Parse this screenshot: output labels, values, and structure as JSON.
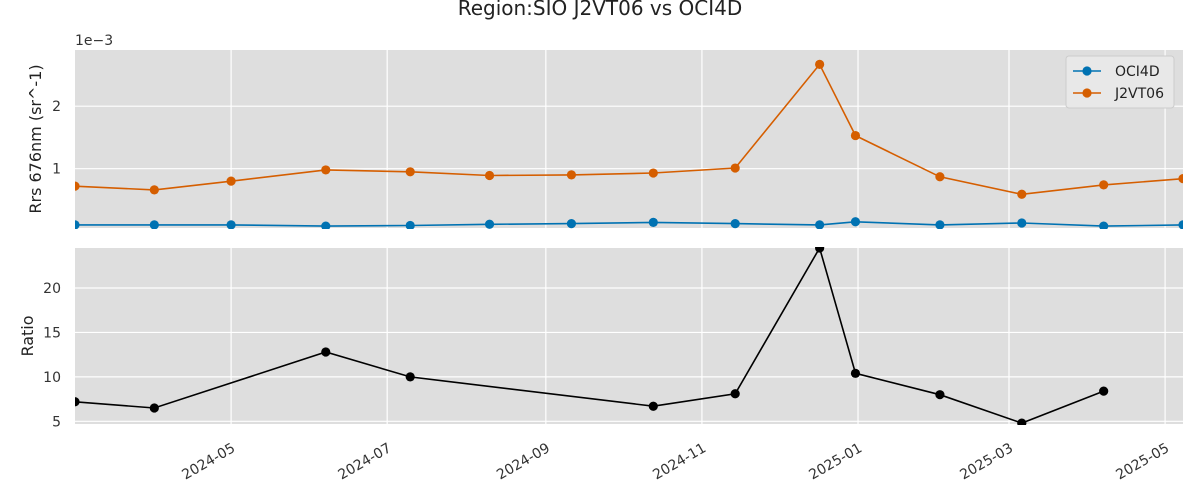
{
  "chart_data": {
    "type": "line",
    "title": "Region:SIO J2VT06 vs OCI4D",
    "x_range": [
      "2024-03-01",
      "2025-05-08"
    ],
    "x_ticks": [
      "2024-05",
      "2024-07",
      "2024-09",
      "2024-11",
      "2025-01",
      "2025-03",
      "2025-05"
    ],
    "grid": true,
    "panels": [
      {
        "type": "line",
        "ylabel": "Rrs 676nm (sr^-1)",
        "offset_text": "1e−3",
        "ylim": [
          5e-05,
          0.0029
        ],
        "y_ticks": [
          0.001,
          0.002
        ],
        "y_tick_labels": [
          "1",
          "2"
        ],
        "legend_position": "top-right",
        "series": [
          {
            "name": "OCI4D",
            "color": "#0072B2",
            "points": [
              {
                "x": "2024-03-01",
                "y": 0.0001
              },
              {
                "x": "2024-04-01",
                "y": 0.0001
              },
              {
                "x": "2024-05-01",
                "y": 0.0001
              },
              {
                "x": "2024-06-07",
                "y": 8e-05
              },
              {
                "x": "2024-07-10",
                "y": 9e-05
              },
              {
                "x": "2024-08-10",
                "y": 0.00011
              },
              {
                "x": "2024-09-11",
                "y": 0.00012
              },
              {
                "x": "2024-10-13",
                "y": 0.00014
              },
              {
                "x": "2024-11-14",
                "y": 0.00012
              },
              {
                "x": "2024-12-17",
                "y": 0.0001
              },
              {
                "x": "2024-12-31",
                "y": 0.00015
              },
              {
                "x": "2025-02-02",
                "y": 0.0001
              },
              {
                "x": "2025-03-06",
                "y": 0.00013
              },
              {
                "x": "2025-04-07",
                "y": 8e-05
              },
              {
                "x": "2025-05-08",
                "y": 0.0001
              }
            ]
          },
          {
            "name": "J2VT06",
            "color": "#D55E00",
            "points": [
              {
                "x": "2024-03-01",
                "y": 0.00072
              },
              {
                "x": "2024-04-01",
                "y": 0.00066
              },
              {
                "x": "2024-05-01",
                "y": 0.0008
              },
              {
                "x": "2024-06-07",
                "y": 0.00098
              },
              {
                "x": "2024-07-10",
                "y": 0.00095
              },
              {
                "x": "2024-08-10",
                "y": 0.00089
              },
              {
                "x": "2024-09-11",
                "y": 0.0009
              },
              {
                "x": "2024-10-13",
                "y": 0.00093
              },
              {
                "x": "2024-11-14",
                "y": 0.00101
              },
              {
                "x": "2024-12-17",
                "y": 0.00267
              },
              {
                "x": "2024-12-31",
                "y": 0.00153
              },
              {
                "x": "2025-02-02",
                "y": 0.00087
              },
              {
                "x": "2025-03-06",
                "y": 0.00059
              },
              {
                "x": "2025-04-07",
                "y": 0.00074
              },
              {
                "x": "2025-05-08",
                "y": 0.00084
              }
            ]
          }
        ]
      },
      {
        "type": "line",
        "ylabel": "Ratio",
        "ylim": [
          4.7,
          24.5
        ],
        "y_ticks": [
          5,
          10,
          15,
          20
        ],
        "y_tick_labels": [
          "5",
          "10",
          "15",
          "20"
        ],
        "series": [
          {
            "name": "",
            "color": "#000000",
            "points": [
              {
                "x": "2024-03-01",
                "y": 7.2
              },
              {
                "x": "2024-04-01",
                "y": 6.5
              },
              {
                "x": "2024-06-07",
                "y": 12.8
              },
              {
                "x": "2024-07-10",
                "y": 10.0
              },
              {
                "x": "2024-10-13",
                "y": 6.7
              },
              {
                "x": "2024-11-14",
                "y": 8.1
              },
              {
                "x": "2024-12-17",
                "y": 24.5
              },
              {
                "x": "2024-12-31",
                "y": 10.4
              },
              {
                "x": "2025-02-02",
                "y": 8.0
              },
              {
                "x": "2025-03-06",
                "y": 4.8
              },
              {
                "x": "2025-04-07",
                "y": 8.4
              }
            ]
          }
        ]
      }
    ]
  }
}
